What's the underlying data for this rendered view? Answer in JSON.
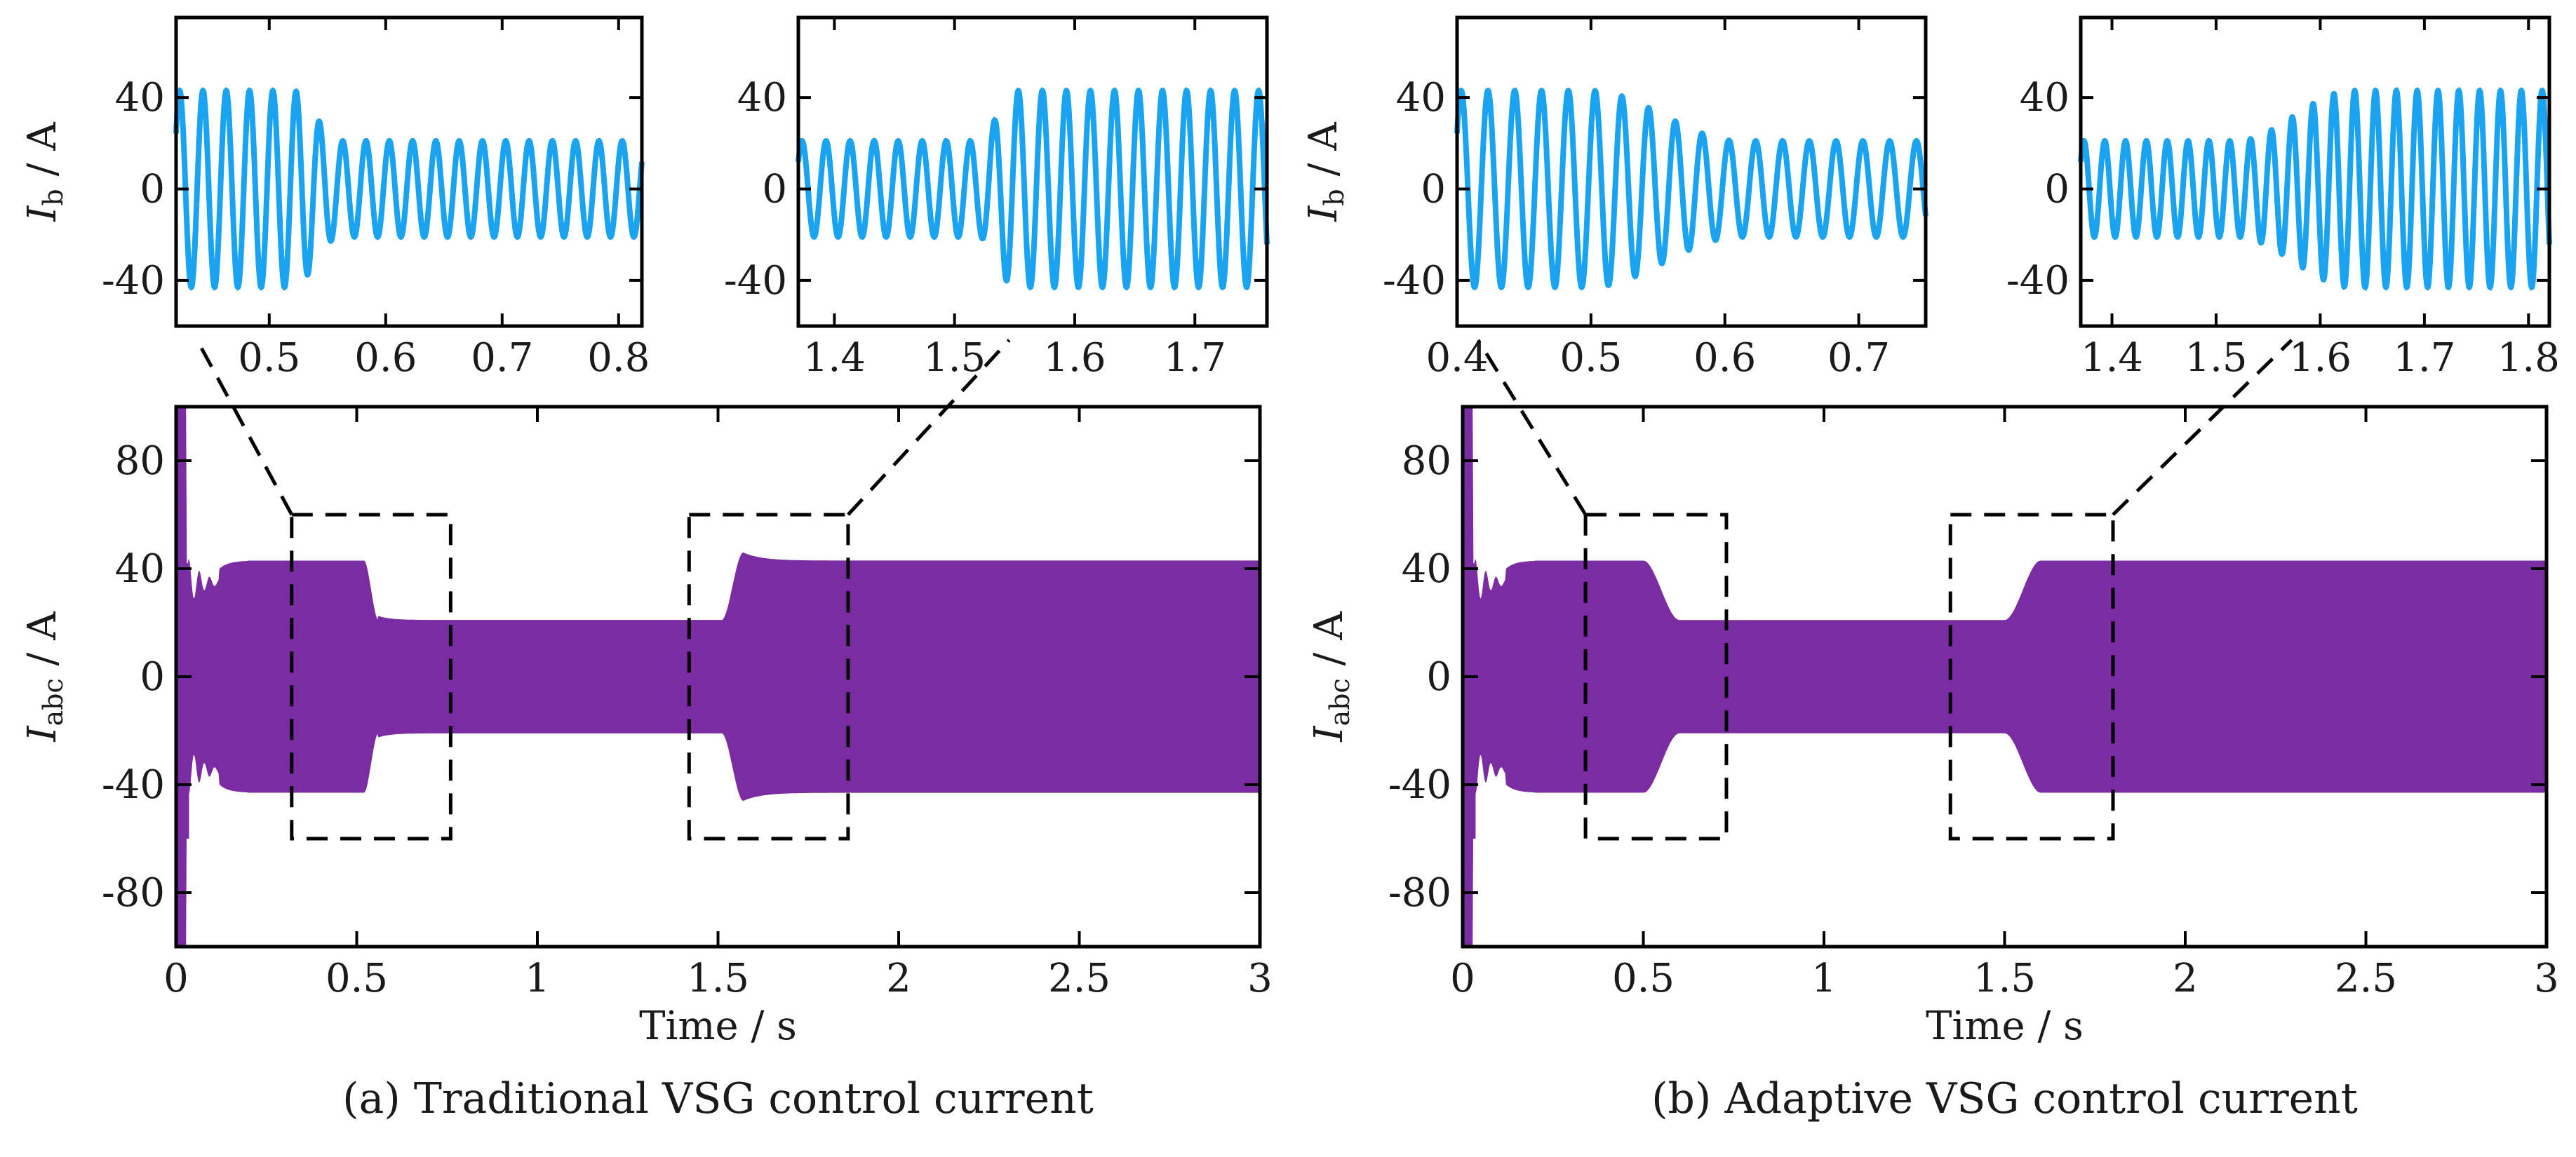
{
  "chart_data": [
    {
      "id": "a_main",
      "type": "line",
      "series": [
        {
          "color": "#7B2CA3",
          "style": "filled envelope of three-phase current"
        }
      ],
      "xlim": [
        0,
        3
      ],
      "ylim": [
        -100,
        100
      ],
      "xticks": [
        0,
        0.5,
        1,
        1.5,
        2,
        2.5,
        3
      ],
      "xtick_labels": [
        "0",
        "0.5",
        "1",
        "1.5",
        "2",
        "2.5",
        "3"
      ],
      "yticks": [
        -80,
        -40,
        0,
        40,
        80
      ],
      "ytick_labels": [
        "-80",
        "-40",
        "0",
        "40",
        "80"
      ],
      "xlabel": "Time / s",
      "ylabel_main": "I",
      "ylabel_sub": "abc",
      "ylabel_unit": " / A",
      "envelope": {
        "startup_peak": 100,
        "t1": 0.52,
        "t1_end": 0.56,
        "t2": 1.51,
        "t2_end": 1.57,
        "high_amplitude": 43,
        "low_amplitude": 21,
        "overshoot_peak": 46,
        "response": "fast"
      },
      "zoom_boxes": [
        {
          "x": [
            0.32,
            0.76
          ],
          "y": [
            -60,
            60
          ]
        },
        {
          "x": [
            1.42,
            1.86
          ],
          "y": [
            -60,
            60
          ]
        }
      ],
      "caption": "(a) Traditional VSG control current"
    },
    {
      "id": "b_main",
      "type": "line",
      "series": [
        {
          "color": "#7B2CA3",
          "style": "filled envelope of three-phase current"
        }
      ],
      "xlim": [
        0,
        3
      ],
      "ylim": [
        -100,
        100
      ],
      "xticks": [
        0,
        0.5,
        1,
        1.5,
        2,
        2.5,
        3
      ],
      "xtick_labels": [
        "0",
        "0.5",
        "1",
        "1.5",
        "2",
        "2.5",
        "3"
      ],
      "yticks": [
        -80,
        -40,
        0,
        40,
        80
      ],
      "ytick_labels": [
        "-80",
        "-40",
        "0",
        "40",
        "80"
      ],
      "xlabel": "Time / s",
      "ylabel_main": "I",
      "ylabel_sub": "abc",
      "ylabel_unit": " / A",
      "envelope": {
        "startup_peak": 100,
        "t1": 0.5,
        "t1_end": 0.6,
        "t2": 1.5,
        "t2_end": 1.6,
        "high_amplitude": 43,
        "low_amplitude": 21,
        "overshoot_peak": 43,
        "response": "smooth"
      },
      "zoom_boxes": [
        {
          "x": [
            0.34,
            0.73
          ],
          "y": [
            -60,
            60
          ]
        },
        {
          "x": [
            1.35,
            1.8
          ],
          "y": [
            -60,
            60
          ]
        }
      ],
      "caption": "(b) Adaptive VSG control current"
    },
    {
      "id": "a_zoom1",
      "type": "line",
      "series": [
        {
          "color": "#1AA3F0"
        }
      ],
      "xlim": [
        0.42,
        0.82
      ],
      "ylim": [
        -60,
        75
      ],
      "xticks": [
        0.5,
        0.6,
        0.7,
        0.8
      ],
      "xtick_labels": [
        "0.5",
        "0.6",
        "0.7",
        "0.8"
      ],
      "yticks": [
        -40,
        0,
        40
      ],
      "ytick_labels": [
        "-40",
        "0",
        "40"
      ],
      "ylabel_main": "I",
      "ylabel_sub": "b",
      "ylabel_unit": " / A",
      "waveform": {
        "freq_hz": 50,
        "amp_before": 43,
        "amp_after": 21,
        "t_change": 0.52,
        "t_change_end": 0.56,
        "direction": "down",
        "response": "fast"
      }
    },
    {
      "id": "a_zoom2",
      "type": "line",
      "series": [
        {
          "color": "#1AA3F0"
        }
      ],
      "xlim": [
        1.37,
        1.76
      ],
      "ylim": [
        -60,
        75
      ],
      "xticks": [
        1.4,
        1.5,
        1.6,
        1.7
      ],
      "xtick_labels": [
        "1.4",
        "1.5",
        "1.6",
        "1.7"
      ],
      "yticks": [
        -40,
        0,
        40
      ],
      "ytick_labels": [
        "-40",
        "0",
        "40"
      ],
      "ylabel_main": "",
      "ylabel_sub": "",
      "ylabel_unit": "",
      "waveform": {
        "freq_hz": 50,
        "amp_before": 21,
        "amp_after": 43,
        "t_change": 1.52,
        "t_change_end": 1.55,
        "direction": "up",
        "response": "fast"
      }
    },
    {
      "id": "b_zoom1",
      "type": "line",
      "series": [
        {
          "color": "#1AA3F0"
        }
      ],
      "xlim": [
        0.4,
        0.75
      ],
      "ylim": [
        -60,
        75
      ],
      "xticks": [
        0.4,
        0.5,
        0.6,
        0.7
      ],
      "xtick_labels": [
        "0.4",
        "0.5",
        "0.6",
        "0.7"
      ],
      "yticks": [
        -40,
        0,
        40
      ],
      "ytick_labels": [
        "-40",
        "0",
        "40"
      ],
      "ylabel_main": "I",
      "ylabel_sub": "b",
      "ylabel_unit": " / A",
      "waveform": {
        "freq_hz": 50,
        "amp_before": 43,
        "amp_after": 21,
        "t_change": 0.5,
        "t_change_end": 0.61,
        "direction": "down",
        "response": "smooth"
      }
    },
    {
      "id": "b_zoom2",
      "type": "line",
      "series": [
        {
          "color": "#1AA3F0"
        }
      ],
      "xlim": [
        1.37,
        1.82
      ],
      "ylim": [
        -60,
        75
      ],
      "xticks": [
        1.4,
        1.5,
        1.6,
        1.7,
        1.8
      ],
      "xtick_labels": [
        "1.4",
        "1.5",
        "1.6",
        "1.7",
        "1.8"
      ],
      "yticks": [
        -40,
        0,
        40
      ],
      "ytick_labels": [
        "-40",
        "0",
        "40"
      ],
      "ylabel_main": "",
      "ylabel_sub": "",
      "ylabel_unit": "",
      "waveform": {
        "freq_hz": 50,
        "amp_before": 21,
        "amp_after": 43,
        "t_change": 1.52,
        "t_change_end": 1.63,
        "direction": "up",
        "response": "smooth"
      }
    }
  ]
}
